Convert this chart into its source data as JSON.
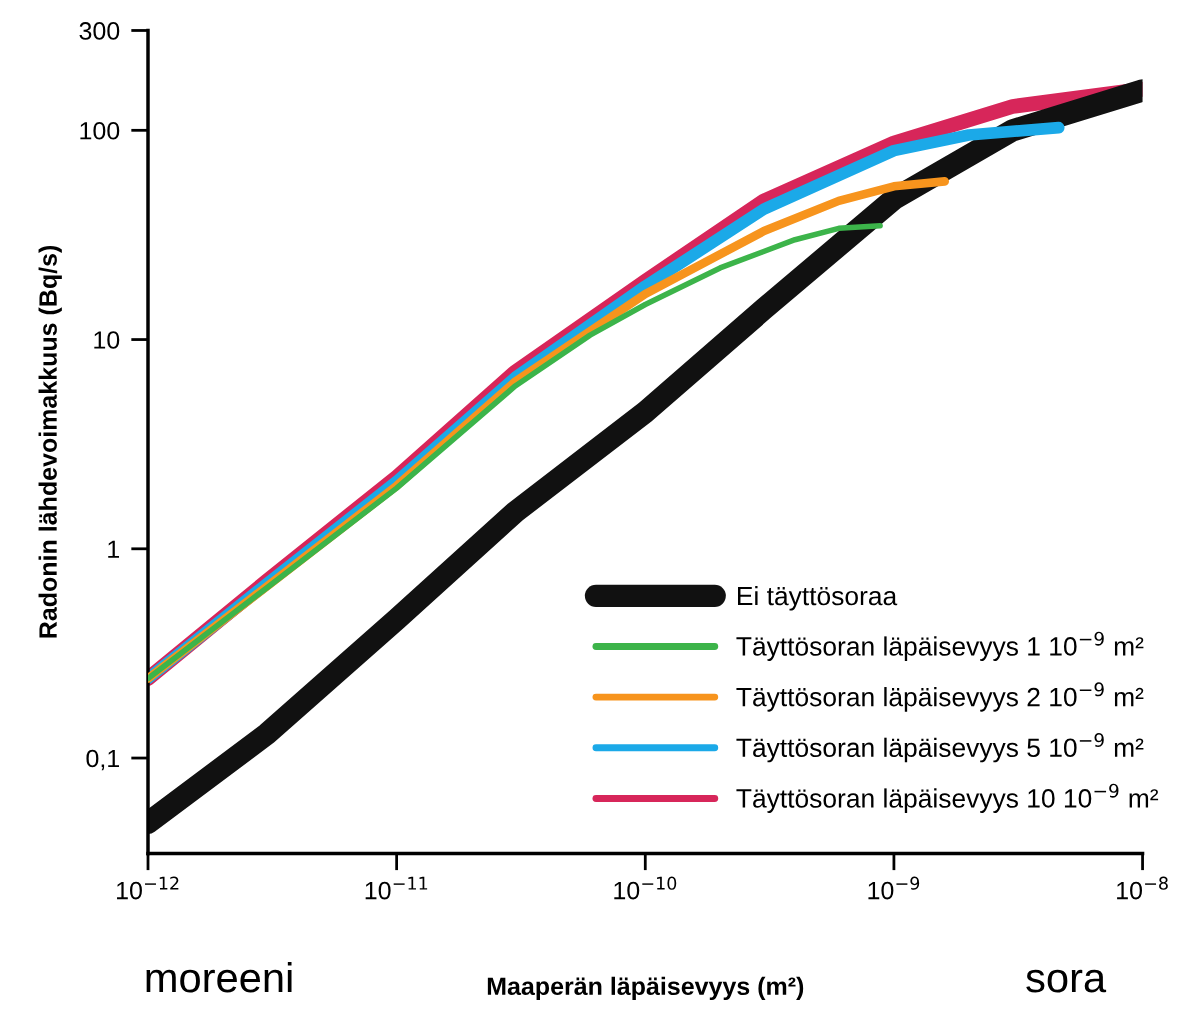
{
  "chart_data": {
    "type": "line",
    "xlabel": "Maaperän läpäisevyys (m²)",
    "ylabel": "Radonin lähdevoimakkuus (Bq/s)",
    "log": "xy",
    "xlim": [
      1e-12,
      1e-08
    ],
    "ylim": [
      0.035,
      300
    ],
    "xticks": [
      {
        "value": 1e-12,
        "label": "10$^{−12}$"
      },
      {
        "value": 1e-11,
        "label": "10$^{−11}$"
      },
      {
        "value": 1e-10,
        "label": "10$^{−10}$"
      },
      {
        "value": 1e-09,
        "label": "10$^{−9}$"
      },
      {
        "value": 1e-08,
        "label": "10$^{−8}$"
      }
    ],
    "yticks": [
      {
        "value": 0.1,
        "label": "0,1"
      },
      1,
      10,
      100,
      300
    ],
    "grid": false,
    "legend": "bottom right",
    "line_style": "solid",
    "marker": "none",
    "series": [
      {
        "name": "Ei täyttösoraa",
        "color": "#111111",
        "x": [
          1e-12,
          3e-12,
          1e-11,
          3e-11,
          1e-10,
          3e-10,
          1e-09,
          3e-09,
          1e-08
        ],
        "values": [
          0.049,
          0.13,
          0.46,
          1.5,
          4.5,
          14,
          47,
          100,
          155
        ]
      },
      {
        "name": "Täyttösoran läpäisevyys 1 10$^{−9}$ m²",
        "color": "#3cb44a",
        "x": [
          1e-12,
          3e-12,
          1e-11,
          3e-11,
          6e-11,
          1e-10,
          2e-10,
          4e-10,
          6e-10,
          8.8e-10
        ],
        "values": [
          0.24,
          0.65,
          1.95,
          6,
          10.5,
          14.7,
          22,
          30,
          34,
          35
        ]
      },
      {
        "name": "Täyttösoran läpäisevyys 2 10$^{−9}$ m²",
        "color": "#f7941d",
        "x": [
          1e-12,
          3e-12,
          1e-11,
          3e-11,
          1e-10,
          3e-10,
          6e-10,
          1e-09,
          1.6e-09
        ],
        "values": [
          0.24,
          0.66,
          2.0,
          6.3,
          16.5,
          33,
          46,
          54,
          57
        ]
      },
      {
        "name": "Täyttösoran läpäisevyys 5 10$^{−9}$ m²",
        "color": "#1ba9e8",
        "x": [
          1e-12,
          3e-12,
          1e-11,
          3e-11,
          1e-10,
          3e-10,
          1e-09,
          2e-09,
          4.6e-09
        ],
        "values": [
          0.24,
          0.68,
          2.1,
          6.6,
          18,
          42,
          80,
          95,
          103
        ]
      },
      {
        "name": "Täyttösoran läpäisevyys 10 10$^{−9}$ m²",
        "color": "#d7265a",
        "x": [
          1e-12,
          3e-12,
          1e-11,
          3e-11,
          1e-10,
          3e-10,
          1e-09,
          3e-09,
          1e-08
        ],
        "values": [
          0.24,
          0.7,
          2.2,
          7,
          19,
          46,
          87,
          130,
          157
        ]
      }
    ],
    "annotations": [
      "moreeni",
      "sora"
    ]
  }
}
